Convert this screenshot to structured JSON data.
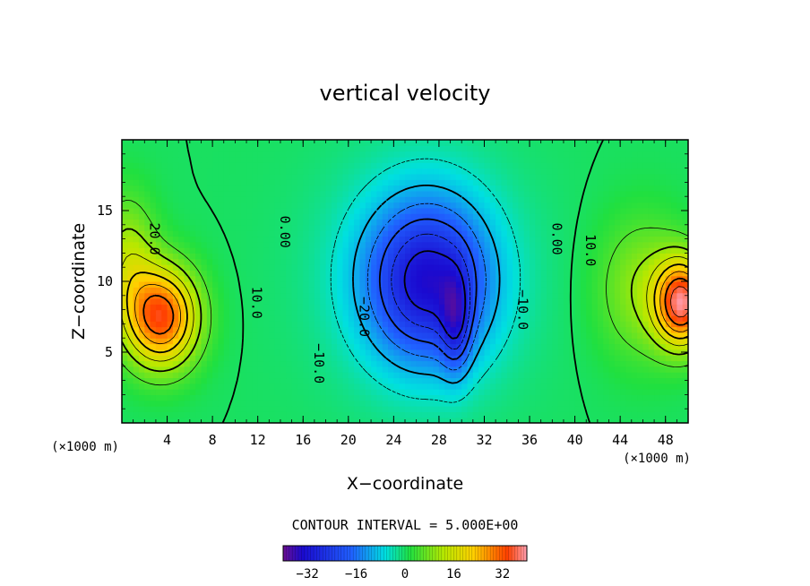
{
  "chart_data": {
    "type": "heatmap",
    "title": "vertical velocity",
    "xlabel": "X−coordinate",
    "ylabel": "Z−coordinate",
    "x_unit_label": "(×1000 m)",
    "z_unit_label": "(×1000 m)",
    "xlim": [
      0,
      50
    ],
    "ylim": [
      0,
      20
    ],
    "x_ticks": [
      "4",
      "8",
      "12",
      "16",
      "20",
      "24",
      "28",
      "32",
      "36",
      "40",
      "44",
      "48"
    ],
    "y_ticks": [
      "5",
      "10",
      "15"
    ],
    "contour_interval_text": "CONTOUR INTERVAL = 5.000E+00",
    "contour_interval": 5,
    "colorbar": {
      "range": [
        -40,
        40
      ],
      "tick_labels": [
        "−32",
        "−16",
        "0",
        "16",
        "32"
      ],
      "tick_values": [
        -32,
        -16,
        0,
        16,
        32
      ]
    },
    "contour_labels": [
      {
        "text": "20.0",
        "x": 2.5,
        "z": 13.0
      },
      {
        "text": "10.0",
        "x": 11.5,
        "z": 8.5
      },
      {
        "text": "0.00",
        "x": 14.0,
        "z": 13.5
      },
      {
        "text": "−20.0",
        "x": 21.0,
        "z": 7.5
      },
      {
        "text": "−10.0",
        "x": 17.0,
        "z": 4.2
      },
      {
        "text": "−10.0",
        "x": 35.0,
        "z": 8.0
      },
      {
        "text": "0.00",
        "x": 38.0,
        "z": 13.0
      },
      {
        "text": "10.0",
        "x": 41.0,
        "z": 12.2
      }
    ],
    "features": [
      {
        "kind": "updraft",
        "x": 3.5,
        "z": 7.5,
        "peak": 33,
        "sx": 3.2,
        "sz": 3.5
      },
      {
        "kind": "updraft",
        "x": 0.5,
        "z": 11.5,
        "peak": 12,
        "sx": 2.5,
        "sz": 4.5
      },
      {
        "kind": "updraft",
        "x": 49.5,
        "z": 8.5,
        "peak": 35,
        "sx": 2.3,
        "sz": 3.0
      },
      {
        "kind": "updraft",
        "x": 46.0,
        "z": 9.5,
        "peak": 10,
        "sx": 4.0,
        "sz": 5.0
      },
      {
        "kind": "downdraft",
        "x": 27.0,
        "z": 10.0,
        "peak": -26,
        "sx": 5.2,
        "sz": 5.5
      },
      {
        "kind": "downdraft",
        "x": 29.5,
        "z": 7.0,
        "peak": -14,
        "sx": 1.3,
        "sz": 3.5
      },
      {
        "kind": "downdraft",
        "x": 26.5,
        "z": 10.5,
        "peak": -8,
        "sx": 8.5,
        "sz": 8.0
      }
    ]
  }
}
